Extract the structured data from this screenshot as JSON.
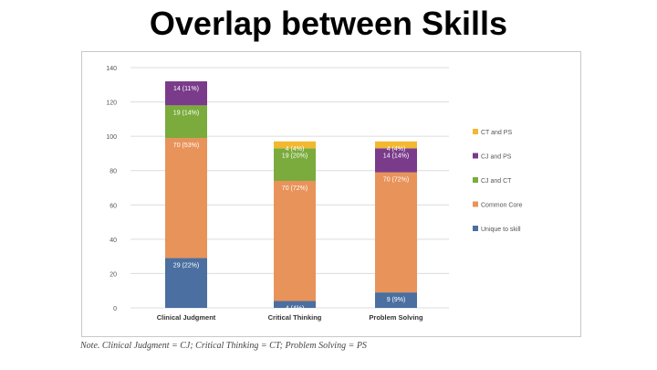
{
  "title": "Overlap between Skills",
  "note": "Note. Clinical Judgment = CJ; Critical Thinking = CT; Problem Solving = PS",
  "colors": {
    "Unique to skill": "#4a6fa0",
    "Common Core": "#e8935a",
    "CJ and CT": "#7aab3c",
    "CJ and PS": "#7a3b8a",
    "CT and PS": "#f2b830"
  },
  "chart_data": {
    "type": "bar",
    "stacked": true,
    "categories": [
      "Clinical Judgment",
      "Critical Thinking",
      "Problem Solving"
    ],
    "ylim": [
      0,
      140
    ],
    "yticks": [
      0,
      20,
      40,
      60,
      80,
      100,
      120,
      140
    ],
    "grid": true,
    "legend_position": "right",
    "legend": [
      "CT and PS",
      "CJ and PS",
      "CJ and CT",
      "Common Core",
      "Unique to skill"
    ],
    "series": [
      {
        "name": "Unique to skill",
        "values": [
          29,
          4,
          9
        ],
        "labels": [
          "29 (22%)",
          "4 (4%)",
          "9 (9%)"
        ]
      },
      {
        "name": "Common Core",
        "values": [
          70,
          70,
          70
        ],
        "labels": [
          "70 (53%)",
          "70 (72%)",
          "70 (72%)"
        ]
      },
      {
        "name": "CJ and CT",
        "values": [
          19,
          19,
          0
        ],
        "labels": [
          "19 (14%)",
          "19 (20%)",
          ""
        ]
      },
      {
        "name": "CJ and PS",
        "values": [
          14,
          0,
          14
        ],
        "labels": [
          "14 (11%)",
          "",
          "14 (14%)"
        ]
      },
      {
        "name": "CT and PS",
        "values": [
          0,
          4,
          4
        ],
        "labels": [
          "",
          "4 (4%)",
          "4 (4%)"
        ]
      }
    ]
  }
}
